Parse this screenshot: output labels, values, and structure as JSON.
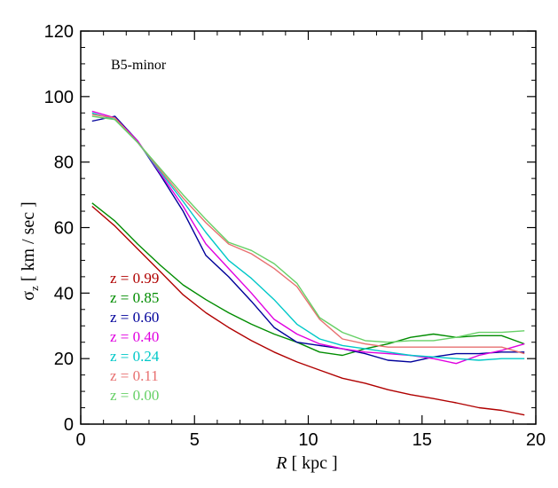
{
  "chart_data": {
    "type": "line",
    "title": "",
    "annotation": "B5-minor",
    "xlabel": "R [ kpc ]",
    "xlabel_italic_part": "R",
    "xlabel_rest": " [ kpc ]",
    "ylabel": "σz [ km / sec ]",
    "ylabel_symbol": "σ",
    "ylabel_sub": "z",
    "ylabel_rest": " [ km / sec ]",
    "xlim": [
      0,
      20
    ],
    "ylim": [
      0,
      120
    ],
    "xticks": [
      0,
      5,
      10,
      15,
      20
    ],
    "yticks": [
      0,
      20,
      40,
      60,
      80,
      100,
      120
    ],
    "xtick_labels": [
      "0",
      "5",
      "10",
      "15",
      "20"
    ],
    "ytick_labels": [
      "0",
      "20",
      "40",
      "60",
      "80",
      "100",
      "120"
    ],
    "grid": false,
    "legend_placement": "lower-left",
    "x": [
      0.5,
      1.5,
      2.5,
      3.5,
      4.5,
      5.5,
      6.5,
      7.5,
      8.5,
      9.5,
      10.5,
      11.5,
      12.5,
      13.5,
      14.5,
      15.5,
      16.5,
      17.5,
      18.5,
      19.5
    ],
    "series": [
      {
        "name": "z = 0.99",
        "color": "#b00000",
        "values": [
          66.5,
          60.5,
          53.5,
          46.5,
          39.5,
          34.0,
          29.5,
          25.5,
          22.0,
          19.0,
          16.5,
          14.0,
          12.5,
          10.5,
          9.0,
          7.8,
          6.5,
          5.0,
          4.2,
          2.8
        ]
      },
      {
        "name": "z = 0.85",
        "color": "#008c00",
        "values": [
          67.5,
          62.0,
          55.0,
          48.5,
          42.5,
          38.0,
          34.0,
          30.5,
          27.5,
          25.0,
          22.0,
          21.0,
          23.0,
          24.5,
          26.5,
          27.5,
          26.5,
          27.0,
          27.0,
          24.5
        ]
      },
      {
        "name": "z = 0.60",
        "color": "#00009a",
        "values": [
          92.5,
          94.0,
          86.5,
          76.0,
          65.0,
          51.5,
          45.0,
          37.5,
          29.5,
          25.0,
          24.0,
          23.0,
          21.5,
          19.5,
          19.0,
          20.5,
          21.5,
          21.5,
          22.0,
          22.0
        ]
      },
      {
        "name": "z = 0.40",
        "color": "#e000e0",
        "values": [
          95.5,
          93.5,
          86.5,
          76.5,
          66.5,
          55.0,
          47.5,
          40.0,
          32.0,
          27.5,
          24.5,
          23.0,
          22.0,
          21.5,
          21.0,
          20.0,
          18.5,
          21.0,
          22.5,
          24.5
        ]
      },
      {
        "name": "z = 0.24",
        "color": "#00c8c8",
        "values": [
          95.0,
          93.0,
          86.0,
          77.0,
          68.0,
          58.5,
          50.0,
          44.5,
          38.0,
          30.5,
          26.0,
          24.0,
          23.0,
          22.0,
          21.0,
          20.5,
          20.0,
          19.5,
          20.0,
          20.0
        ]
      },
      {
        "name": "z = 0.11",
        "color": "#e87070",
        "values": [
          94.5,
          93.5,
          86.0,
          77.5,
          69.0,
          61.5,
          55.0,
          52.0,
          47.5,
          42.0,
          32.0,
          26.0,
          24.5,
          23.5,
          23.5,
          23.5,
          23.5,
          23.5,
          23.5,
          21.5
        ]
      },
      {
        "name": "z = 0.00",
        "color": "#66d066",
        "values": [
          94.0,
          93.0,
          86.0,
          78.0,
          70.0,
          62.5,
          55.5,
          53.0,
          49.0,
          43.0,
          32.5,
          28.0,
          25.5,
          25.0,
          25.5,
          25.5,
          26.5,
          28.0,
          28.0,
          28.5
        ]
      }
    ]
  }
}
